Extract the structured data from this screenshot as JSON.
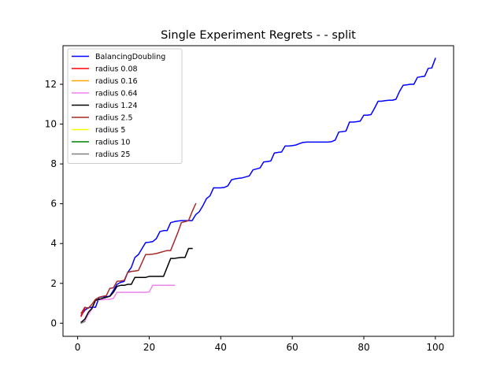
{
  "chart_data": {
    "type": "line",
    "title": "Single Experiment Regrets -  - split",
    "xlabel": "",
    "ylabel": "",
    "xlim": [
      -4.1,
      105.1
    ],
    "ylim": [
      -0.66,
      13.94
    ],
    "x_ticks": [
      0,
      20,
      40,
      60,
      80,
      100
    ],
    "y_ticks": [
      0,
      2,
      4,
      6,
      8,
      10,
      12
    ],
    "grid": false,
    "legend_position": "top-left",
    "series": [
      {
        "name": "BalancingDoubling",
        "color": "#0000ff",
        "points": [
          [
            1,
            0.4
          ],
          [
            2,
            0.65
          ],
          [
            3,
            0.78
          ],
          [
            4,
            0.8
          ],
          [
            5,
            0.8
          ],
          [
            6,
            1.3
          ],
          [
            7,
            1.33
          ],
          [
            8,
            1.33
          ],
          [
            9,
            1.36
          ],
          [
            10,
            1.65
          ],
          [
            11,
            1.95
          ],
          [
            12,
            2.05
          ],
          [
            13,
            2.1
          ],
          [
            14,
            2.55
          ],
          [
            15,
            2.8
          ],
          [
            16,
            3.3
          ],
          [
            17,
            3.45
          ],
          [
            18,
            3.75
          ],
          [
            19,
            4.05
          ],
          [
            20,
            4.07
          ],
          [
            21,
            4.1
          ],
          [
            22,
            4.25
          ],
          [
            23,
            4.6
          ],
          [
            24,
            4.65
          ],
          [
            25,
            4.65
          ],
          [
            26,
            5.05
          ],
          [
            27,
            5.1
          ],
          [
            28,
            5.13
          ],
          [
            29,
            5.15
          ],
          [
            30,
            5.15
          ],
          [
            31,
            5.15
          ],
          [
            32,
            5.15
          ],
          [
            33,
            5.45
          ],
          [
            34,
            5.6
          ],
          [
            35,
            5.9
          ],
          [
            36,
            6.25
          ],
          [
            37,
            6.4
          ],
          [
            38,
            6.8
          ],
          [
            39,
            6.8
          ],
          [
            40,
            6.8
          ],
          [
            41,
            6.82
          ],
          [
            42,
            6.9
          ],
          [
            43,
            7.2
          ],
          [
            44,
            7.25
          ],
          [
            45,
            7.28
          ],
          [
            46,
            7.3
          ],
          [
            47,
            7.35
          ],
          [
            48,
            7.4
          ],
          [
            49,
            7.7
          ],
          [
            50,
            7.75
          ],
          [
            51,
            7.8
          ],
          [
            52,
            8.1
          ],
          [
            53,
            8.12
          ],
          [
            54,
            8.15
          ],
          [
            55,
            8.55
          ],
          [
            56,
            8.58
          ],
          [
            57,
            8.6
          ],
          [
            58,
            8.9
          ],
          [
            59,
            8.9
          ],
          [
            60,
            8.92
          ],
          [
            61,
            8.95
          ],
          [
            62,
            9.02
          ],
          [
            63,
            9.08
          ],
          [
            64,
            9.1
          ],
          [
            65,
            9.1
          ],
          [
            66,
            9.1
          ],
          [
            67,
            9.1
          ],
          [
            68,
            9.1
          ],
          [
            69,
            9.1
          ],
          [
            70,
            9.1
          ],
          [
            71,
            9.12
          ],
          [
            72,
            9.2
          ],
          [
            73,
            9.6
          ],
          [
            74,
            9.62
          ],
          [
            75,
            9.65
          ],
          [
            76,
            10.1
          ],
          [
            77,
            10.1
          ],
          [
            78,
            10.12
          ],
          [
            79,
            10.15
          ],
          [
            80,
            10.45
          ],
          [
            81,
            10.45
          ],
          [
            82,
            10.48
          ],
          [
            83,
            10.8
          ],
          [
            84,
            11.15
          ],
          [
            85,
            11.15
          ],
          [
            86,
            11.18
          ],
          [
            87,
            11.2
          ],
          [
            88,
            11.2
          ],
          [
            89,
            11.25
          ],
          [
            90,
            11.65
          ],
          [
            91,
            11.95
          ],
          [
            92,
            11.97
          ],
          [
            93,
            12.0
          ],
          [
            94,
            12.0
          ],
          [
            95,
            12.35
          ],
          [
            96,
            12.38
          ],
          [
            97,
            12.4
          ],
          [
            98,
            12.8
          ],
          [
            99,
            12.82
          ],
          [
            100,
            13.3
          ]
        ]
      },
      {
        "name": "radius 0.08",
        "color": "#ff0000",
        "points": [
          [
            1,
            0.35
          ],
          [
            2,
            0.75
          ]
        ]
      },
      {
        "name": "radius 0.16",
        "color": "#ffa500",
        "points": []
      },
      {
        "name": "radius 0.64",
        "color": "#ee82ee",
        "points": [
          [
            1,
            0.0
          ],
          [
            2,
            0.1
          ],
          [
            3,
            0.45
          ],
          [
            4,
            0.7
          ],
          [
            5,
            1.15
          ],
          [
            6,
            1.17
          ],
          [
            7,
            1.18
          ],
          [
            8,
            1.2
          ],
          [
            9,
            1.2
          ],
          [
            10,
            1.25
          ],
          [
            11,
            1.55
          ],
          [
            12,
            1.55
          ],
          [
            13,
            1.55
          ],
          [
            14,
            1.55
          ],
          [
            15,
            1.55
          ],
          [
            16,
            1.55
          ],
          [
            17,
            1.55
          ],
          [
            18,
            1.55
          ],
          [
            19,
            1.55
          ],
          [
            20,
            1.57
          ],
          [
            21,
            1.9
          ],
          [
            22,
            1.9
          ],
          [
            23,
            1.9
          ],
          [
            24,
            1.9
          ],
          [
            25,
            1.9
          ],
          [
            26,
            1.9
          ],
          [
            27,
            1.9
          ]
        ]
      },
      {
        "name": "radius 1.24",
        "color": "#000000",
        "points": [
          [
            1,
            0.05
          ],
          [
            2,
            0.2
          ],
          [
            3,
            0.55
          ],
          [
            4,
            0.75
          ],
          [
            5,
            1.15
          ],
          [
            6,
            1.2
          ],
          [
            7,
            1.25
          ],
          [
            8,
            1.3
          ],
          [
            9,
            1.35
          ],
          [
            10,
            1.55
          ],
          [
            11,
            1.85
          ],
          [
            12,
            1.9
          ],
          [
            13,
            1.9
          ],
          [
            14,
            1.95
          ],
          [
            15,
            1.95
          ],
          [
            16,
            2.3
          ],
          [
            17,
            2.3
          ],
          [
            18,
            2.3
          ],
          [
            19,
            2.3
          ],
          [
            20,
            2.35
          ],
          [
            21,
            2.35
          ],
          [
            22,
            2.35
          ],
          [
            23,
            2.35
          ],
          [
            24,
            2.35
          ],
          [
            25,
            2.8
          ],
          [
            26,
            3.25
          ],
          [
            27,
            3.25
          ],
          [
            28,
            3.28
          ],
          [
            29,
            3.3
          ],
          [
            30,
            3.3
          ],
          [
            31,
            3.75
          ],
          [
            32,
            3.75
          ]
        ]
      },
      {
        "name": "radius 2.5",
        "color": "#a52a2a",
        "points": [
          [
            1,
            0.5
          ],
          [
            2,
            0.8
          ],
          [
            3,
            0.75
          ],
          [
            4,
            0.95
          ],
          [
            5,
            1.2
          ],
          [
            6,
            1.3
          ],
          [
            7,
            1.35
          ],
          [
            8,
            1.38
          ],
          [
            9,
            1.75
          ],
          [
            10,
            1.78
          ],
          [
            11,
            2.1
          ],
          [
            12,
            2.12
          ],
          [
            13,
            2.15
          ],
          [
            14,
            2.55
          ],
          [
            15,
            2.6
          ],
          [
            16,
            2.62
          ],
          [
            17,
            2.65
          ],
          [
            18,
            3.05
          ],
          [
            19,
            3.45
          ],
          [
            20,
            3.45
          ],
          [
            21,
            3.47
          ],
          [
            22,
            3.5
          ],
          [
            23,
            3.55
          ],
          [
            24,
            3.6
          ],
          [
            25,
            3.65
          ],
          [
            26,
            3.65
          ],
          [
            27,
            4.1
          ],
          [
            28,
            4.55
          ],
          [
            29,
            5.05
          ],
          [
            30,
            5.1
          ],
          [
            31,
            5.15
          ],
          [
            32,
            5.6
          ],
          [
            33,
            6.0
          ]
        ]
      },
      {
        "name": "radius 5",
        "color": "#ffff00",
        "points": []
      },
      {
        "name": "radius 10",
        "color": "#008000",
        "points": []
      },
      {
        "name": "radius 25",
        "color": "#808080",
        "points": [
          [
            1,
            0.0
          ],
          [
            2,
            0.08
          ]
        ]
      }
    ]
  }
}
